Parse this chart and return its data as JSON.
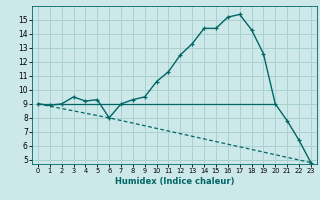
{
  "xlabel": "Humidex (Indice chaleur)",
  "bg_color": "#cce8e8",
  "grid_color": "#aad0d0",
  "line_color": "#006666",
  "xlim": [
    -0.5,
    23.5
  ],
  "ylim": [
    4.7,
    16.0
  ],
  "yticks": [
    5,
    6,
    7,
    8,
    9,
    10,
    11,
    12,
    13,
    14,
    15
  ],
  "xticks": [
    0,
    1,
    2,
    3,
    4,
    5,
    6,
    7,
    8,
    9,
    10,
    11,
    12,
    13,
    14,
    15,
    16,
    17,
    18,
    19,
    20,
    21,
    22,
    23
  ],
  "curve1_x": [
    0,
    1,
    2,
    3,
    4,
    5,
    6,
    7,
    8,
    9,
    10,
    11,
    12,
    13,
    14,
    15,
    16,
    17,
    18,
    19,
    20,
    21,
    22,
    23
  ],
  "curve1_y": [
    9.0,
    8.9,
    9.0,
    9.5,
    9.2,
    9.3,
    8.0,
    9.0,
    9.3,
    9.5,
    10.6,
    11.3,
    12.5,
    13.3,
    14.4,
    14.4,
    15.2,
    15.4,
    14.3,
    12.6,
    9.0,
    7.8,
    6.4,
    4.8
  ],
  "curve2_x": [
    0,
    6,
    23
  ],
  "curve2_y": [
    9.0,
    8.0,
    4.8
  ],
  "curve3_x": [
    0,
    20
  ],
  "curve3_y": [
    9.0,
    9.0
  ]
}
